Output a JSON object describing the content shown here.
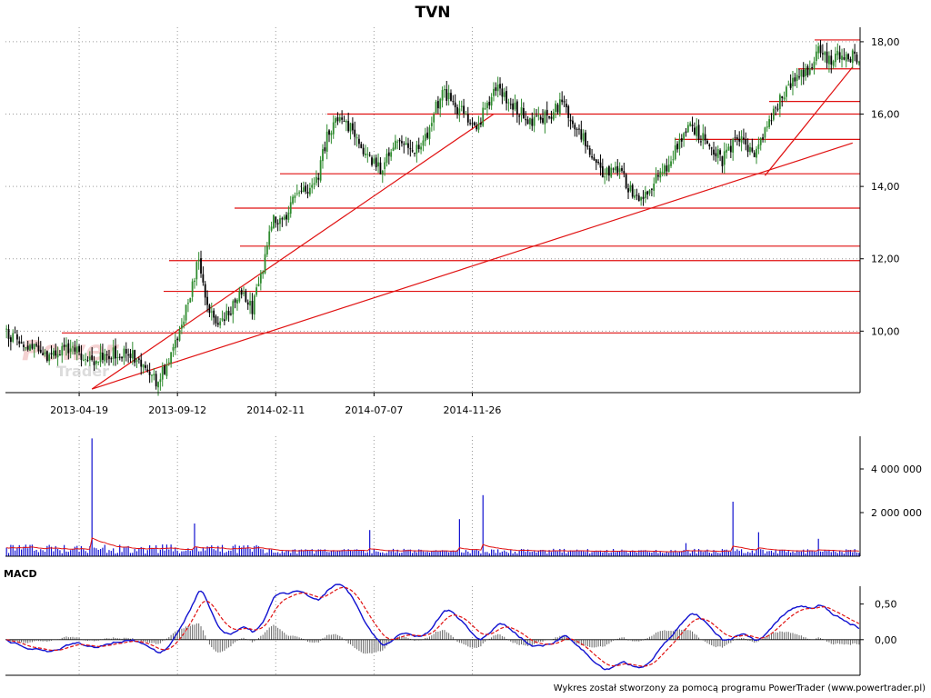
{
  "chart_data": [
    {
      "type": "candlestick",
      "title": "TVN",
      "x_tick_labels": [
        "2013-04-19",
        "2013-09-12",
        "2014-02-11",
        "2014-07-07",
        "2014-11-26"
      ],
      "y_tick_labels": [
        "10,00",
        "12,00",
        "14,00",
        "16,00",
        "18,00"
      ],
      "ylim": [
        8.3,
        18.4
      ],
      "grid": true,
      "approx_close_path": [
        [
          0,
          9.9
        ],
        [
          10,
          9.6
        ],
        [
          20,
          9.3
        ],
        [
          30,
          9.5
        ],
        [
          40,
          9.2
        ],
        [
          50,
          9.4
        ],
        [
          60,
          9.3
        ],
        [
          65,
          8.9
        ],
        [
          70,
          8.6
        ],
        [
          75,
          9.0
        ],
        [
          80,
          9.9
        ],
        [
          85,
          10.8
        ],
        [
          90,
          12.0
        ],
        [
          95,
          10.5
        ],
        [
          100,
          10.1
        ],
        [
          105,
          10.6
        ],
        [
          110,
          11.1
        ],
        [
          115,
          10.6
        ],
        [
          120,
          11.8
        ],
        [
          125,
          13.2
        ],
        [
          130,
          13.0
        ],
        [
          135,
          13.7
        ],
        [
          140,
          13.9
        ],
        [
          145,
          14.1
        ],
        [
          150,
          15.4
        ],
        [
          155,
          15.9
        ],
        [
          160,
          15.7
        ],
        [
          165,
          15.2
        ],
        [
          170,
          14.8
        ],
        [
          175,
          14.5
        ],
        [
          180,
          15.0
        ],
        [
          185,
          15.3
        ],
        [
          190,
          14.9
        ],
        [
          195,
          15.1
        ],
        [
          200,
          16.1
        ],
        [
          205,
          16.6
        ],
        [
          210,
          16.2
        ],
        [
          215,
          16.0
        ],
        [
          220,
          15.6
        ],
        [
          225,
          16.3
        ],
        [
          230,
          16.8
        ],
        [
          235,
          16.3
        ],
        [
          240,
          16.1
        ],
        [
          245,
          15.8
        ],
        [
          250,
          15.9
        ],
        [
          255,
          16.0
        ],
        [
          260,
          16.3
        ],
        [
          265,
          15.8
        ],
        [
          270,
          15.3
        ],
        [
          275,
          14.8
        ],
        [
          280,
          14.3
        ],
        [
          285,
          14.6
        ],
        [
          290,
          14.1
        ],
        [
          295,
          13.6
        ],
        [
          300,
          13.9
        ],
        [
          305,
          14.3
        ],
        [
          310,
          14.6
        ],
        [
          315,
          15.3
        ],
        [
          320,
          15.7
        ],
        [
          325,
          15.4
        ],
        [
          330,
          15.1
        ],
        [
          335,
          14.7
        ],
        [
          340,
          15.2
        ],
        [
          345,
          15.3
        ],
        [
          350,
          14.8
        ],
        [
          355,
          15.5
        ],
        [
          360,
          16.2
        ],
        [
          365,
          16.6
        ],
        [
          370,
          17.0
        ],
        [
          375,
          17.2
        ],
        [
          380,
          17.8
        ],
        [
          385,
          17.5
        ],
        [
          390,
          17.6
        ],
        [
          395,
          17.6
        ]
      ],
      "support_resistance_levels": [
        9.95,
        11.1,
        11.95,
        12.35,
        13.4,
        14.35,
        15.3,
        16.0,
        16.35,
        17.25,
        18.05
      ],
      "trend_lines": [
        {
          "from": [
            40,
            8.4
          ],
          "to": [
            228,
            16.0
          ]
        },
        {
          "from": [
            40,
            8.4
          ],
          "to": [
            396,
            15.2
          ]
        },
        {
          "from": [
            355,
            14.3
          ],
          "to": [
            396,
            17.3
          ]
        }
      ]
    },
    {
      "type": "bar",
      "name": "volume",
      "y_tick_labels": [
        "2 000 000",
        "4 000 000"
      ],
      "ylim": [
        0,
        5500000
      ],
      "spikes": [
        {
          "i": 40,
          "value": 5400000
        },
        {
          "i": 88,
          "value": 1500000
        },
        {
          "i": 170,
          "value": 1200000
        },
        {
          "i": 212,
          "value": 1700000
        },
        {
          "i": 223,
          "value": 2800000
        },
        {
          "i": 318,
          "value": 600000
        },
        {
          "i": 340,
          "value": 2500000
        },
        {
          "i": 352,
          "value": 1100000
        },
        {
          "i": 380,
          "value": 800000
        }
      ]
    },
    {
      "type": "line",
      "name": "MACD",
      "label": "MACD",
      "y_tick_labels": [
        "0,50",
        "0,00"
      ],
      "ylim": [
        -0.5,
        0.75
      ],
      "note": "MACD and signal lines are derived from the price path"
    }
  ],
  "footer": "Wykres został stworzony za pomocą programu PowerTrader (www.powertrader.pl)",
  "watermark": [
    "Power",
    "Trader"
  ],
  "colors": {
    "up": "#2e8b2e",
    "down": "#000000",
    "level": "#e01010",
    "volume": "#1010d0",
    "volume_avg": "#e01010",
    "macd": "#1010d0",
    "signal": "#e01010",
    "grid": "#9a9a9a"
  }
}
